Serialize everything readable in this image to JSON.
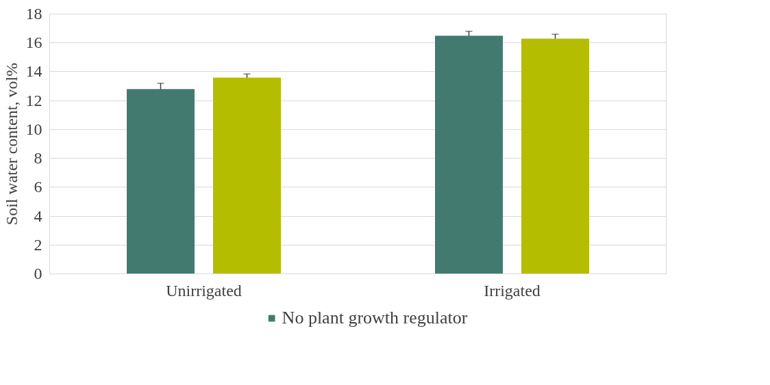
{
  "chart_data": {
    "type": "bar",
    "ylabel": "Soil water content, vol%",
    "categories": [
      "Unirrigated",
      "Irrigated"
    ],
    "series": [
      {
        "name": "No plant growth regulator",
        "color": "#437a70",
        "values": [
          12.8,
          16.5
        ],
        "errors": [
          0.4,
          0.3
        ]
      },
      {
        "color": "#b5bd00",
        "values": [
          13.6,
          16.3
        ],
        "errors": [
          0.25,
          0.3
        ]
      }
    ],
    "ylim": [
      0,
      18
    ],
    "yticks": [
      0,
      2,
      4,
      6,
      8,
      10,
      12,
      14,
      16,
      18
    ],
    "grid": "y",
    "legend": "bottom"
  }
}
